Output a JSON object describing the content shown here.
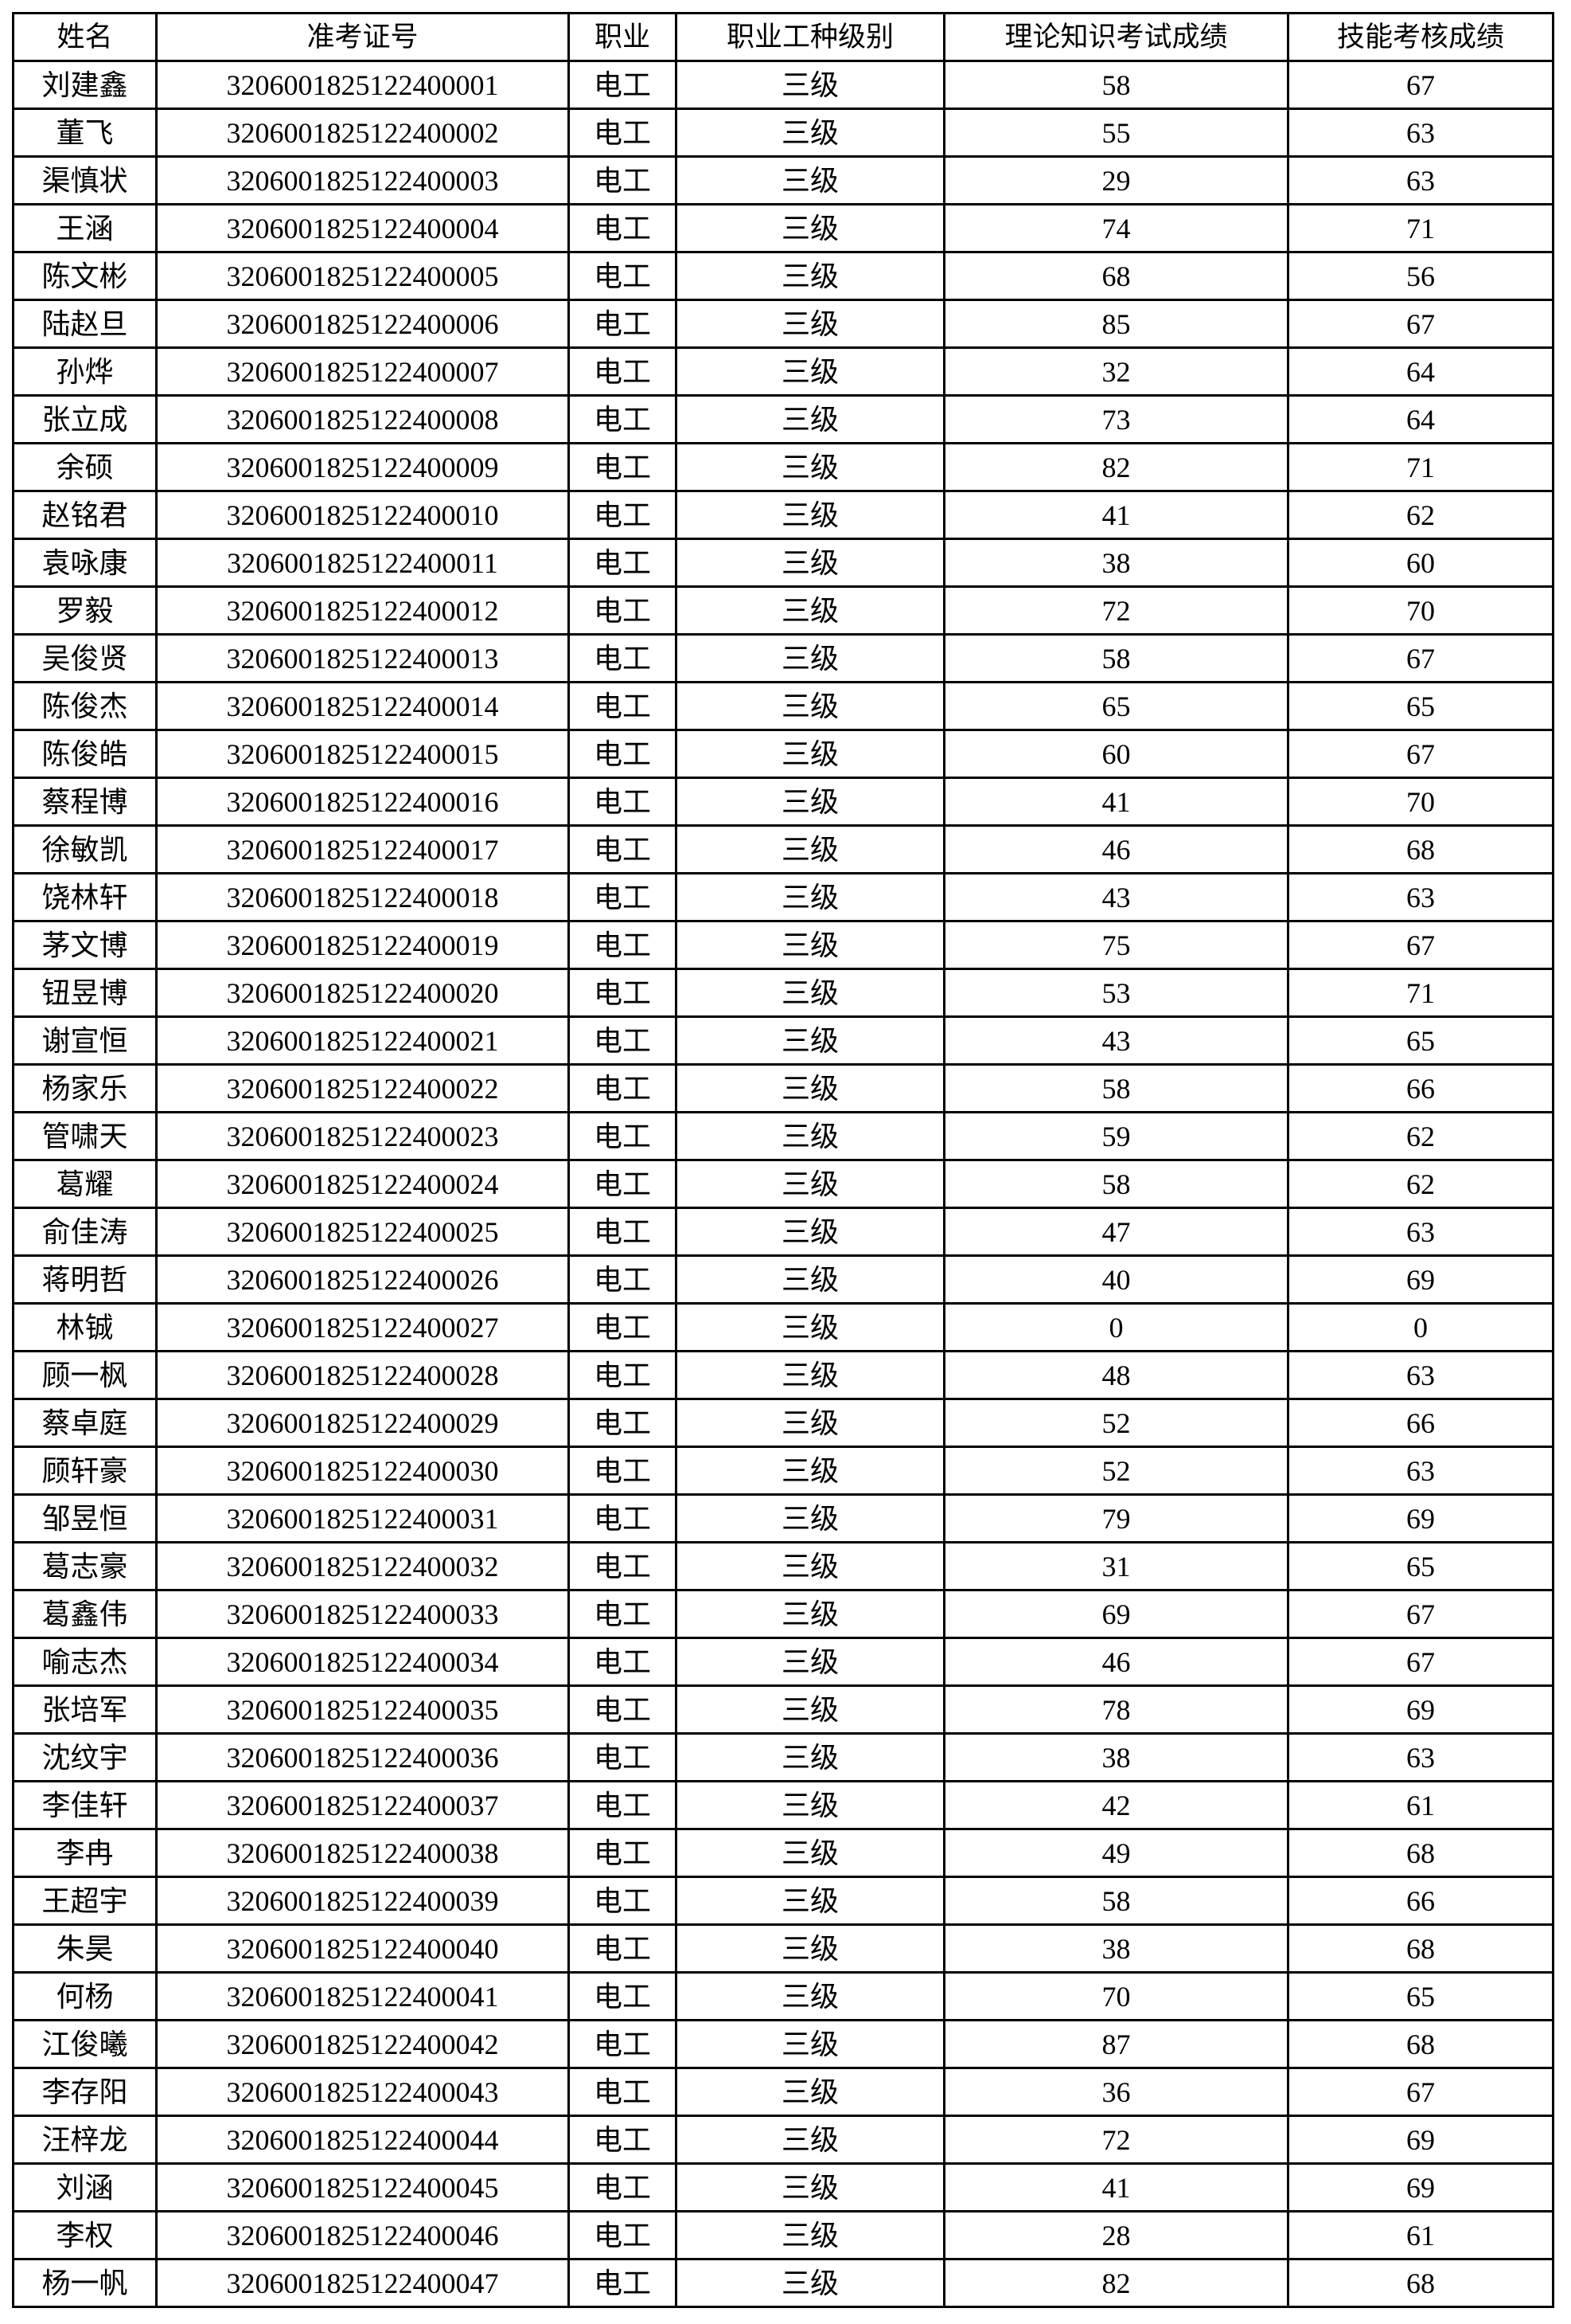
{
  "table": {
    "headers": [
      "姓名",
      "准考证号",
      "职业",
      "职业工种级别",
      "理论知识考试成绩",
      "技能考核成绩"
    ],
    "rows": [
      [
        "刘建鑫",
        "3206001825122400001",
        "电工",
        "三级",
        "58",
        "67"
      ],
      [
        "董飞",
        "3206001825122400002",
        "电工",
        "三级",
        "55",
        "63"
      ],
      [
        "渠慎状",
        "3206001825122400003",
        "电工",
        "三级",
        "29",
        "63"
      ],
      [
        "王涵",
        "3206001825122400004",
        "电工",
        "三级",
        "74",
        "71"
      ],
      [
        "陈文彬",
        "3206001825122400005",
        "电工",
        "三级",
        "68",
        "56"
      ],
      [
        "陆赵旦",
        "3206001825122400006",
        "电工",
        "三级",
        "85",
        "67"
      ],
      [
        "孙烨",
        "3206001825122400007",
        "电工",
        "三级",
        "32",
        "64"
      ],
      [
        "张立成",
        "3206001825122400008",
        "电工",
        "三级",
        "73",
        "64"
      ],
      [
        "余硕",
        "3206001825122400009",
        "电工",
        "三级",
        "82",
        "71"
      ],
      [
        "赵铭君",
        "3206001825122400010",
        "电工",
        "三级",
        "41",
        "62"
      ],
      [
        "袁咏康",
        "3206001825122400011",
        "电工",
        "三级",
        "38",
        "60"
      ],
      [
        "罗毅",
        "3206001825122400012",
        "电工",
        "三级",
        "72",
        "70"
      ],
      [
        "吴俊贤",
        "3206001825122400013",
        "电工",
        "三级",
        "58",
        "67"
      ],
      [
        "陈俊杰",
        "3206001825122400014",
        "电工",
        "三级",
        "65",
        "65"
      ],
      [
        "陈俊皓",
        "3206001825122400015",
        "电工",
        "三级",
        "60",
        "67"
      ],
      [
        "蔡程博",
        "3206001825122400016",
        "电工",
        "三级",
        "41",
        "70"
      ],
      [
        "徐敏凯",
        "3206001825122400017",
        "电工",
        "三级",
        "46",
        "68"
      ],
      [
        "饶林轩",
        "3206001825122400018",
        "电工",
        "三级",
        "43",
        "63"
      ],
      [
        "茅文博",
        "3206001825122400019",
        "电工",
        "三级",
        "75",
        "67"
      ],
      [
        "钮昱博",
        "3206001825122400020",
        "电工",
        "三级",
        "53",
        "71"
      ],
      [
        "谢宣恒",
        "3206001825122400021",
        "电工",
        "三级",
        "43",
        "65"
      ],
      [
        "杨家乐",
        "3206001825122400022",
        "电工",
        "三级",
        "58",
        "66"
      ],
      [
        "管啸天",
        "3206001825122400023",
        "电工",
        "三级",
        "59",
        "62"
      ],
      [
        "葛耀",
        "3206001825122400024",
        "电工",
        "三级",
        "58",
        "62"
      ],
      [
        "俞佳涛",
        "3206001825122400025",
        "电工",
        "三级",
        "47",
        "63"
      ],
      [
        "蒋明哲",
        "3206001825122400026",
        "电工",
        "三级",
        "40",
        "69"
      ],
      [
        "林铖",
        "3206001825122400027",
        "电工",
        "三级",
        "0",
        "0"
      ],
      [
        "顾一枫",
        "3206001825122400028",
        "电工",
        "三级",
        "48",
        "63"
      ],
      [
        "蔡卓庭",
        "3206001825122400029",
        "电工",
        "三级",
        "52",
        "66"
      ],
      [
        "顾轩豪",
        "3206001825122400030",
        "电工",
        "三级",
        "52",
        "63"
      ],
      [
        "邹昱恒",
        "3206001825122400031",
        "电工",
        "三级",
        "79",
        "69"
      ],
      [
        "葛志豪",
        "3206001825122400032",
        "电工",
        "三级",
        "31",
        "65"
      ],
      [
        "葛鑫伟",
        "3206001825122400033",
        "电工",
        "三级",
        "69",
        "67"
      ],
      [
        "喻志杰",
        "3206001825122400034",
        "电工",
        "三级",
        "46",
        "67"
      ],
      [
        "张培军",
        "3206001825122400035",
        "电工",
        "三级",
        "78",
        "69"
      ],
      [
        "沈纹宇",
        "3206001825122400036",
        "电工",
        "三级",
        "38",
        "63"
      ],
      [
        "李佳轩",
        "3206001825122400037",
        "电工",
        "三级",
        "42",
        "61"
      ],
      [
        "李冉",
        "3206001825122400038",
        "电工",
        "三级",
        "49",
        "68"
      ],
      [
        "王超宇",
        "3206001825122400039",
        "电工",
        "三级",
        "58",
        "66"
      ],
      [
        "朱昊",
        "3206001825122400040",
        "电工",
        "三级",
        "38",
        "68"
      ],
      [
        "何杨",
        "3206001825122400041",
        "电工",
        "三级",
        "70",
        "65"
      ],
      [
        "江俊曦",
        "3206001825122400042",
        "电工",
        "三级",
        "87",
        "68"
      ],
      [
        "李存阳",
        "3206001825122400043",
        "电工",
        "三级",
        "36",
        "67"
      ],
      [
        "汪梓龙",
        "3206001825122400044",
        "电工",
        "三级",
        "72",
        "69"
      ],
      [
        "刘涵",
        "3206001825122400045",
        "电工",
        "三级",
        "41",
        "69"
      ],
      [
        "李权",
        "3206001825122400046",
        "电工",
        "三级",
        "28",
        "61"
      ],
      [
        "杨一帆",
        "3206001825122400047",
        "电工",
        "三级",
        "82",
        "68"
      ]
    ]
  }
}
